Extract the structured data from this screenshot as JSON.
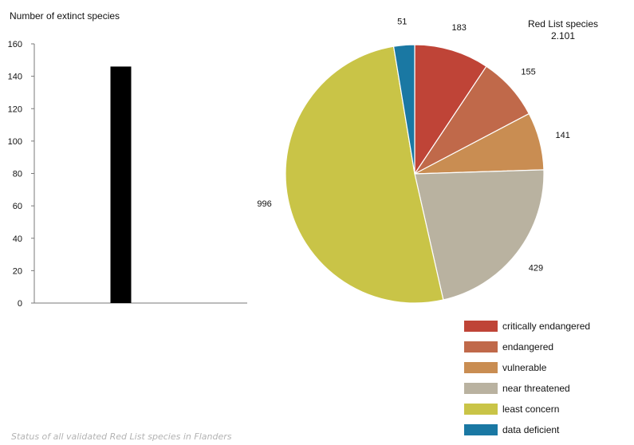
{
  "caption": "Status of all validated Red List species in Flanders",
  "chart_data": [
    {
      "type": "bar",
      "title": "Number of extinct species",
      "xlabel": "",
      "ylabel": "",
      "categories": [
        ""
      ],
      "values": [
        146
      ],
      "ylim": [
        0,
        160
      ],
      "yticks": [
        0,
        20,
        40,
        60,
        80,
        100,
        120,
        140,
        160
      ],
      "grid": false,
      "bar_color": "#000000"
    },
    {
      "type": "pie",
      "title": "Red List species",
      "subtitle": "2.101",
      "legend_position": "bottom-right",
      "slices": [
        {
          "label": "critically endangered",
          "value": 183,
          "value_label": "183",
          "color": "#bf4437"
        },
        {
          "label": "endangered",
          "value": 155,
          "value_label": "155",
          "color": "#c0694a"
        },
        {
          "label": "vulnerable",
          "value": 141,
          "value_label": "141",
          "color": "#c98d52"
        },
        {
          "label": "near threatened",
          "value": 429,
          "value_label": "429",
          "color": "#b9b2a0"
        },
        {
          "label": "least concern",
          "value": 996,
          "value_label": "996",
          "color": "#c9c447"
        },
        {
          "label": "data deficient",
          "value": 51,
          "value_label": "51",
          "color": "#1a78a3"
        }
      ]
    }
  ]
}
